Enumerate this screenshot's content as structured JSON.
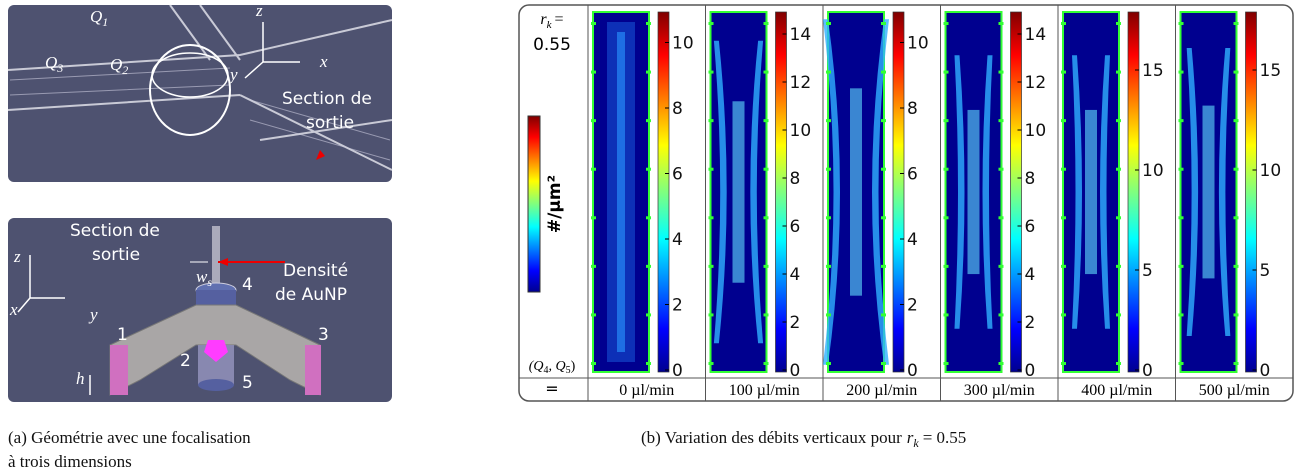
{
  "panel_a": {
    "top": {
      "q1": "Q",
      "q1_sub": "1",
      "q2": "Q",
      "q2_sub": "2",
      "q3": "Q",
      "q3_sub": "3",
      "axis_z": "z",
      "axis_y": "y",
      "axis_x": "x",
      "section_line1": "Section de",
      "section_line2": "sortie"
    },
    "bottom": {
      "section_line1": "Section de",
      "section_line2": "sortie",
      "axis_z": "z",
      "axis_x": "x",
      "axis_y": "y",
      "ws": "w",
      "ws_sub": "s",
      "density_line1": "Densité",
      "density_line2": "de AuNP",
      "n1": "1",
      "n2": "2",
      "n3": "3",
      "n4": "4",
      "n5": "5",
      "h": "h"
    },
    "caption_line1": "(a) Géométrie avec une focalisation",
    "caption_line2": "à trois dimensions"
  },
  "panel_b": {
    "rk_line1": "r",
    "rk_sub": "k",
    "rk_eq": "=",
    "rk_value": "0.55",
    "colorbar_label": "#/µm²",
    "q_label": "(Q",
    "q_sub4": "4",
    "q_comma": ", Q",
    "q_sub5": "5",
    "q_close": ")",
    "q_eq": "=",
    "panels": [
      {
        "label": "0 µl/min",
        "ticks": [
          "0",
          "2",
          "4",
          "6",
          "8",
          "10"
        ]
      },
      {
        "label": "100 µl/min",
        "ticks": [
          "0",
          "2",
          "4",
          "6",
          "8",
          "10",
          "12",
          "14"
        ]
      },
      {
        "label": "200 µl/min",
        "ticks": [
          "0",
          "2",
          "4",
          "6",
          "8",
          "10"
        ]
      },
      {
        "label": "300 µl/min",
        "ticks": [
          "0",
          "2",
          "4",
          "6",
          "8",
          "10",
          "12",
          "14"
        ]
      },
      {
        "label": "400 µl/min",
        "ticks": [
          "0",
          "5",
          "10",
          "15"
        ]
      },
      {
        "label": "500 µl/min",
        "ticks": [
          "0",
          "5",
          "10",
          "15"
        ]
      }
    ],
    "caption": "(b) Variation des débits verticaux pour",
    "caption_var": "r",
    "caption_sub": "k",
    "caption_eq": "= 0.55"
  }
}
